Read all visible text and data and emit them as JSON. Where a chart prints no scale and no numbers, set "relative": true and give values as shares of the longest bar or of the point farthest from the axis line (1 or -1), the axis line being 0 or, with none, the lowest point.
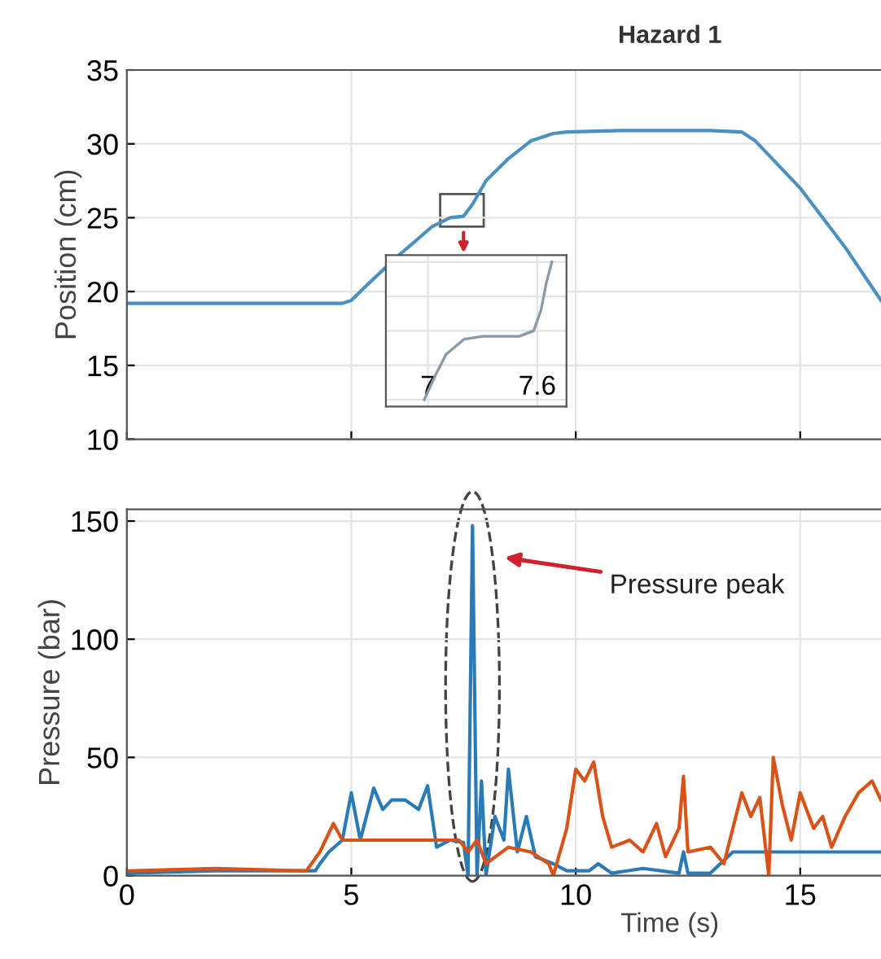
{
  "chart_data": [
    {
      "type": "line",
      "title": "Hazard 1",
      "ylabel": "Position (cm)",
      "xlim": [
        0,
        16.8
      ],
      "xticks": [
        0,
        5,
        10,
        15
      ],
      "ylim": [
        10,
        35
      ],
      "yticks": [
        10,
        15,
        20,
        25,
        30,
        35
      ],
      "grid": true,
      "tick_labels": "y",
      "series": [
        {
          "color": "#4a90c0",
          "x": [
            0,
            4.8,
            5.0,
            5.3,
            6.0,
            6.8,
            7.2,
            7.5,
            7.7,
            8.0,
            8.5,
            9.0,
            9.5,
            9.8,
            11.0,
            13.0,
            13.7,
            14.0,
            15.0,
            16.0,
            16.8
          ],
          "values": [
            19.2,
            19.2,
            19.4,
            20.3,
            22.3,
            24.4,
            25.0,
            25.1,
            25.9,
            27.5,
            29.0,
            30.2,
            30.7,
            30.8,
            30.9,
            30.9,
            30.8,
            30.2,
            27.0,
            23.0,
            19.4
          ]
        }
      ]
    },
    {
      "type": "line",
      "ylabel": "Pressure (bar)",
      "xlabel": "Time (s)",
      "xlim": [
        0,
        16.8
      ],
      "xticks": [
        0,
        5,
        10,
        15
      ],
      "ylim": [
        0,
        155
      ],
      "yticks": [
        0,
        50,
        100,
        150
      ],
      "grid": true,
      "annotations": [
        "Pressure peak"
      ],
      "series": [
        {
          "color": "#2a7ab8",
          "x": [
            0,
            2.0,
            4.2,
            4.3,
            4.5,
            4.8,
            5.0,
            5.2,
            5.5,
            5.7,
            5.9,
            6.2,
            6.5,
            6.7,
            6.9,
            7.2,
            7.5,
            7.6,
            7.7,
            7.8,
            7.9,
            8.0,
            8.2,
            8.4,
            8.5,
            8.7,
            8.9,
            9.1,
            9.5,
            9.8,
            10.3,
            10.5,
            10.8,
            11.5,
            12.3,
            12.4,
            12.5,
            13.0,
            13.5,
            14.0,
            16.8
          ],
          "values": [
            1,
            2,
            2,
            5,
            10,
            15,
            35,
            15,
            37,
            28,
            32,
            32,
            28,
            38,
            12,
            15,
            14,
            0,
            148,
            0,
            40,
            0,
            25,
            15,
            45,
            10,
            25,
            8,
            5,
            2,
            2,
            5,
            1,
            3,
            1,
            10,
            1,
            1,
            10,
            10,
            10
          ]
        },
        {
          "color": "#d95319",
          "x": [
            0,
            2.0,
            4.0,
            4.3,
            4.6,
            4.8,
            7.4,
            7.6,
            7.8,
            8.0,
            8.5,
            9.0,
            9.4,
            9.5,
            9.8,
            10.0,
            10.2,
            10.4,
            10.6,
            10.8,
            11.2,
            11.5,
            11.8,
            12.0,
            12.3,
            12.4,
            12.5,
            13.0,
            13.3,
            13.7,
            13.9,
            14.1,
            14.3,
            14.4,
            14.6,
            14.8,
            15.0,
            15.3,
            15.5,
            15.7,
            16.0,
            16.3,
            16.6,
            16.8
          ],
          "values": [
            2,
            3,
            2,
            10,
            22,
            15,
            15,
            10,
            15,
            5,
            12,
            10,
            5,
            0,
            20,
            45,
            40,
            48,
            25,
            12,
            15,
            10,
            22,
            8,
            20,
            42,
            10,
            12,
            5,
            35,
            25,
            33,
            0,
            50,
            30,
            15,
            35,
            20,
            25,
            12,
            25,
            35,
            40,
            32
          ]
        }
      ]
    },
    {
      "type": "line",
      "relative": true,
      "xlim": [
        6.77,
        7.76
      ],
      "xticks": [
        7,
        7.6
      ],
      "grid": true,
      "series": [
        {
          "color": "#8a9aa8",
          "x": [
            6.98,
            7.05,
            7.1,
            7.2,
            7.3,
            7.5,
            7.58,
            7.62,
            7.65,
            7.68
          ],
          "values": [
            0,
            0.2,
            0.33,
            0.44,
            0.46,
            0.46,
            0.5,
            0.65,
            0.85,
            1
          ]
        }
      ]
    }
  ]
}
